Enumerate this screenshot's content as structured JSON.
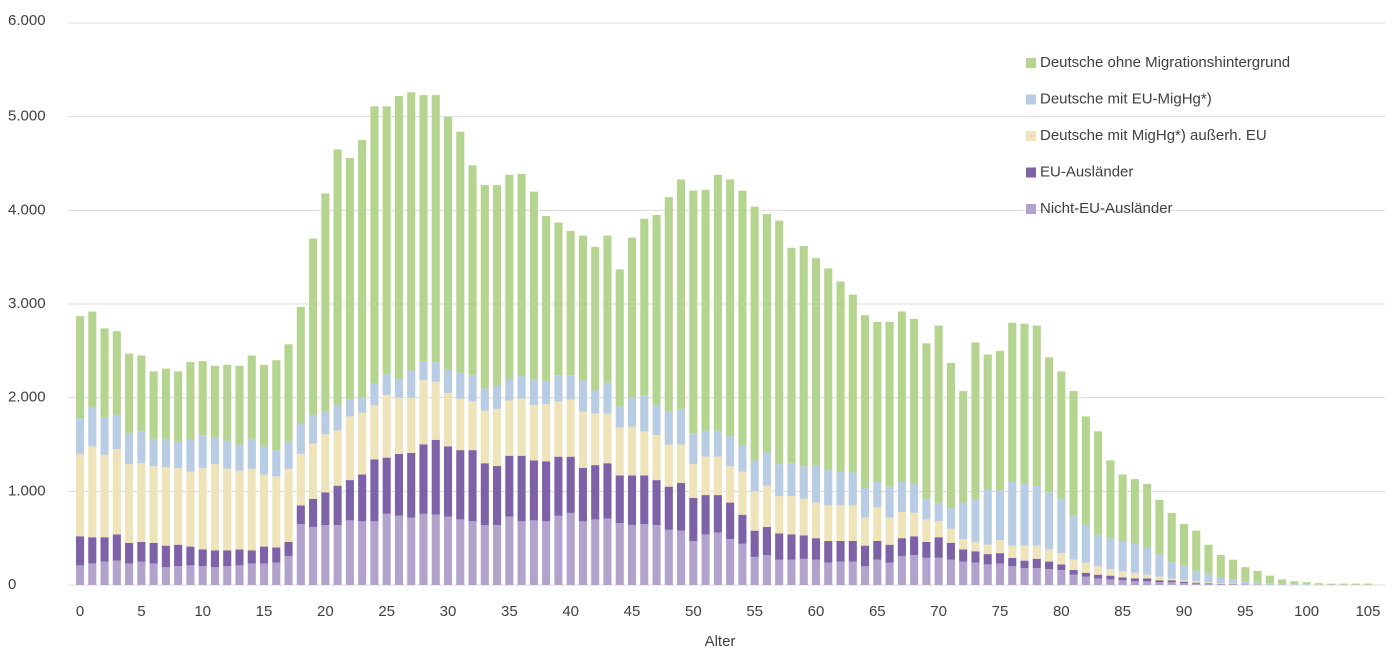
{
  "chart_data": {
    "type": "bar",
    "stacked": true,
    "x_label": "Alter",
    "x": [
      0,
      1,
      2,
      3,
      4,
      5,
      6,
      7,
      8,
      9,
      10,
      11,
      12,
      13,
      14,
      15,
      16,
      17,
      18,
      19,
      20,
      21,
      22,
      23,
      24,
      25,
      26,
      27,
      28,
      29,
      30,
      31,
      32,
      33,
      34,
      35,
      36,
      37,
      38,
      39,
      40,
      41,
      42,
      43,
      44,
      45,
      46,
      47,
      48,
      49,
      50,
      51,
      52,
      53,
      54,
      55,
      56,
      57,
      58,
      59,
      60,
      61,
      62,
      63,
      64,
      65,
      66,
      67,
      68,
      69,
      70,
      71,
      72,
      73,
      74,
      75,
      76,
      77,
      78,
      79,
      80,
      81,
      82,
      83,
      84,
      85,
      86,
      87,
      88,
      89,
      90,
      91,
      92,
      93,
      94,
      95,
      96,
      97,
      98,
      99,
      100,
      101,
      102,
      103,
      104,
      105
    ],
    "xlim": [
      -0.5,
      105.5
    ],
    "xticks": [
      0,
      5,
      10,
      15,
      20,
      25,
      30,
      35,
      40,
      45,
      50,
      55,
      60,
      65,
      70,
      75,
      80,
      85,
      90,
      95,
      100,
      105
    ],
    "ylim": [
      0,
      6000
    ],
    "yticks": [
      0,
      {
        "value": 1000,
        "label": "1.000"
      },
      {
        "value": 2000,
        "label": "2.000"
      },
      {
        "value": 3000,
        "label": "3.000"
      },
      {
        "value": 4000,
        "label": "4.000"
      },
      {
        "value": 5000,
        "label": "5.000"
      },
      {
        "value": 6000,
        "label": "6.000"
      }
    ],
    "grid": true,
    "legend": "top-right",
    "series": [
      {
        "name": "Deutsche ohne Migrationshintergrund",
        "color": "#b5d48f",
        "values": [
          1090,
          1020,
          950,
          890,
          850,
          810,
          720,
          750,
          750,
          830,
          790,
          760,
          810,
          840,
          890,
          870,
          960,
          1040,
          1250,
          1880,
          2330,
          2730,
          2580,
          2750,
          2960,
          2860,
          3020,
          2970,
          2840,
          2850,
          2700,
          2570,
          2240,
          2170,
          2140,
          2180,
          2160,
          2000,
          1760,
          1630,
          1540,
          1550,
          1530,
          1570,
          1460,
          1710,
          1890,
          2030,
          2290,
          2450,
          2590,
          2570,
          2730,
          2740,
          2720,
          2710,
          2540,
          2600,
          2300,
          2350,
          2210,
          2150,
          2030,
          1900,
          1840,
          1710,
          1760,
          1820,
          1760,
          1660,
          1890,
          1550,
          1190,
          1670,
          1440,
          1490,
          1700,
          1700,
          1710,
          1440,
          1360,
          1330,
          1160,
          1100,
          830,
          710,
          690,
          680,
          580,
          520,
          440,
          430,
          310,
          240,
          210,
          150,
          120,
          80,
          45,
          30,
          22,
          15,
          11,
          12,
          12,
          12
        ]
      },
      {
        "name": "Deutsche mit EU-MigHg*)",
        "color": "#b8cce4",
        "values": [
          380,
          420,
          400,
          370,
          330,
          340,
          290,
          300,
          280,
          340,
          350,
          290,
          300,
          280,
          320,
          300,
          280,
          290,
          320,
          310,
          240,
          270,
          180,
          160,
          230,
          220,
          200,
          290,
          200,
          210,
          250,
          280,
          280,
          240,
          250,
          230,
          240,
          280,
          250,
          280,
          260,
          330,
          250,
          330,
          230,
          310,
          380,
          320,
          350,
          380,
          330,
          280,
          280,
          320,
          280,
          330,
          360,
          340,
          350,
          350,
          400,
          380,
          360,
          350,
          320,
          270,
          330,
          320,
          310,
          220,
          200,
          220,
          390,
          460,
          590,
          530,
          680,
          670,
          640,
          610,
          580,
          470,
          400,
          340,
          330,
          320,
          310,
          290,
          240,
          180,
          160,
          110,
          90,
          60,
          45,
          30,
          22,
          15,
          12,
          8,
          7,
          4,
          4,
          3,
          3,
          3
        ]
      },
      {
        "name": "Deutsche mit MigHg*) außerh. EU",
        "color": "#efe3b9",
        "values": [
          880,
          970,
          880,
          910,
          840,
          840,
          820,
          840,
          820,
          800,
          870,
          920,
          870,
          840,
          870,
          770,
          760,
          780,
          550,
          590,
          620,
          590,
          680,
          660,
          580,
          670,
          600,
          590,
          690,
          620,
          570,
          550,
          520,
          560,
          610,
          590,
          610,
          590,
          610,
          590,
          610,
          600,
          550,
          530,
          510,
          520,
          470,
          480,
          450,
          410,
          360,
          410,
          410,
          390,
          460,
          420,
          440,
          400,
          410,
          390,
          380,
          380,
          380,
          380,
          300,
          360,
          290,
          280,
          250,
          240,
          170,
          150,
          110,
          100,
          100,
          140,
          130,
          160,
          140,
          130,
          120,
          110,
          110,
          90,
          70,
          70,
          60,
          40,
          40,
          20,
          15,
          15,
          12,
          7,
          6,
          3,
          3,
          2,
          1,
          1,
          1,
          1,
          0,
          0,
          0,
          0
        ]
      },
      {
        "name": "EU-Ausländer",
        "color": "#7d62a8",
        "values": [
          310,
          280,
          260,
          280,
          220,
          210,
          220,
          230,
          230,
          200,
          180,
          180,
          170,
          170,
          140,
          180,
          160,
          150,
          200,
          300,
          350,
          420,
          430,
          500,
          660,
          600,
          660,
          690,
          740,
          800,
          750,
          740,
          760,
          660,
          630,
          650,
          700,
          640,
          640,
          630,
          600,
          570,
          580,
          590,
          510,
          530,
          520,
          480,
          460,
          510,
          460,
          420,
          400,
          390,
          310,
          280,
          300,
          280,
          270,
          250,
          230,
          230,
          220,
          220,
          220,
          200,
          190,
          190,
          200,
          170,
          220,
          180,
          130,
          120,
          110,
          110,
          90,
          80,
          100,
          80,
          60,
          50,
          40,
          40,
          40,
          30,
          30,
          30,
          20,
          20,
          15,
          10,
          8,
          5,
          4,
          3,
          2,
          1,
          1,
          0,
          0,
          0,
          0,
          0,
          0,
          0
        ]
      },
      {
        "name": "Nicht-EU-Ausländer",
        "color": "#b2a3cd",
        "values": [
          210,
          230,
          250,
          260,
          230,
          250,
          230,
          190,
          200,
          210,
          200,
          190,
          200,
          210,
          230,
          230,
          240,
          310,
          650,
          620,
          640,
          640,
          690,
          680,
          680,
          760,
          740,
          720,
          760,
          750,
          730,
          700,
          680,
          640,
          640,
          730,
          680,
          690,
          680,
          740,
          770,
          680,
          700,
          710,
          660,
          640,
          650,
          640,
          590,
          580,
          470,
          540,
          560,
          490,
          440,
          300,
          320,
          270,
          270,
          280,
          270,
          240,
          250,
          250,
          200,
          270,
          240,
          310,
          320,
          290,
          290,
          270,
          250,
          240,
          220,
          230,
          200,
          180,
          180,
          170,
          160,
          110,
          90,
          70,
          60,
          50,
          40,
          40,
          30,
          30,
          20,
          15,
          10,
          8,
          5,
          4,
          3,
          2,
          1,
          1,
          0,
          0,
          0,
          0,
          0,
          0
        ]
      }
    ]
  }
}
